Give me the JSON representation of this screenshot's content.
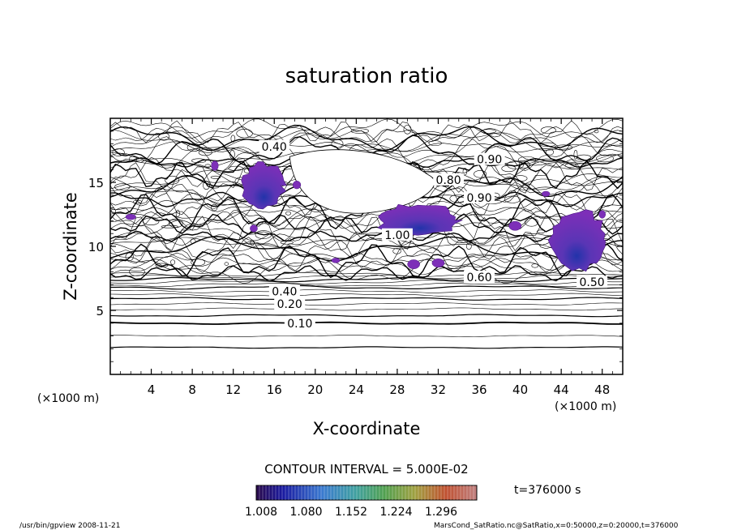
{
  "chart_data": {
    "type": "heatmap",
    "title": "saturation ratio",
    "xlabel": "X-coordinate",
    "ylabel": "Z-coordinate",
    "x_unit": "(×1000 m)",
    "z_unit": "(×1000 m)",
    "xlim": [
      0,
      50
    ],
    "ylim": [
      0,
      20
    ],
    "x_ticks": [
      "4",
      "8",
      "12",
      "16",
      "20",
      "24",
      "28",
      "32",
      "36",
      "40",
      "44",
      "48"
    ],
    "y_ticks": [
      "5",
      "10",
      "15"
    ],
    "contour_interval_label": "CONTOUR INTERVAL = 5.000E-02",
    "time_label": "t=376000 s",
    "colorbar_ticks": [
      "1.008",
      "1.080",
      "1.152",
      "1.224",
      "1.296"
    ],
    "colorbar_range": [
      1.008,
      1.296
    ],
    "contour_labels": [
      {
        "text": "0.10",
        "x": 18.5,
        "z": 4.0
      },
      {
        "text": "0.20",
        "x": 17.5,
        "z": 5.5
      },
      {
        "text": "0.40",
        "x": 17.0,
        "z": 6.5
      },
      {
        "text": "0.50",
        "x": 47.0,
        "z": 7.2
      },
      {
        "text": "0.40",
        "x": 16.0,
        "z": 17.8
      },
      {
        "text": "0.90",
        "x": 37.0,
        "z": 16.8
      },
      {
        "text": "0.80",
        "x": 33.0,
        "z": 15.2
      },
      {
        "text": "0.90",
        "x": 36.0,
        "z": 13.8
      },
      {
        "text": "1.00",
        "x": 28.0,
        "z": 10.9
      },
      {
        "text": "0.60",
        "x": 36.0,
        "z": 7.6
      }
    ],
    "supersaturated_regions": [
      {
        "x": [
          12.8,
          17.0
        ],
        "z": [
          13.0,
          16.5
        ]
      },
      {
        "x": [
          26.0,
          34.0
        ],
        "z": [
          10.8,
          13.3
        ]
      },
      {
        "x": [
          43.0,
          48.5
        ],
        "z": [
          8.2,
          12.8
        ]
      }
    ],
    "colors": {
      "fill": "#7d2fb8",
      "fill_core": "#2233aa",
      "line": "#000000"
    }
  },
  "footer": {
    "left": "/usr/bin/gpview  2008-11-21",
    "right": "MarsCond_SatRatio.nc@SatRatio,x=0:50000,z=0:20000,t=376000"
  }
}
